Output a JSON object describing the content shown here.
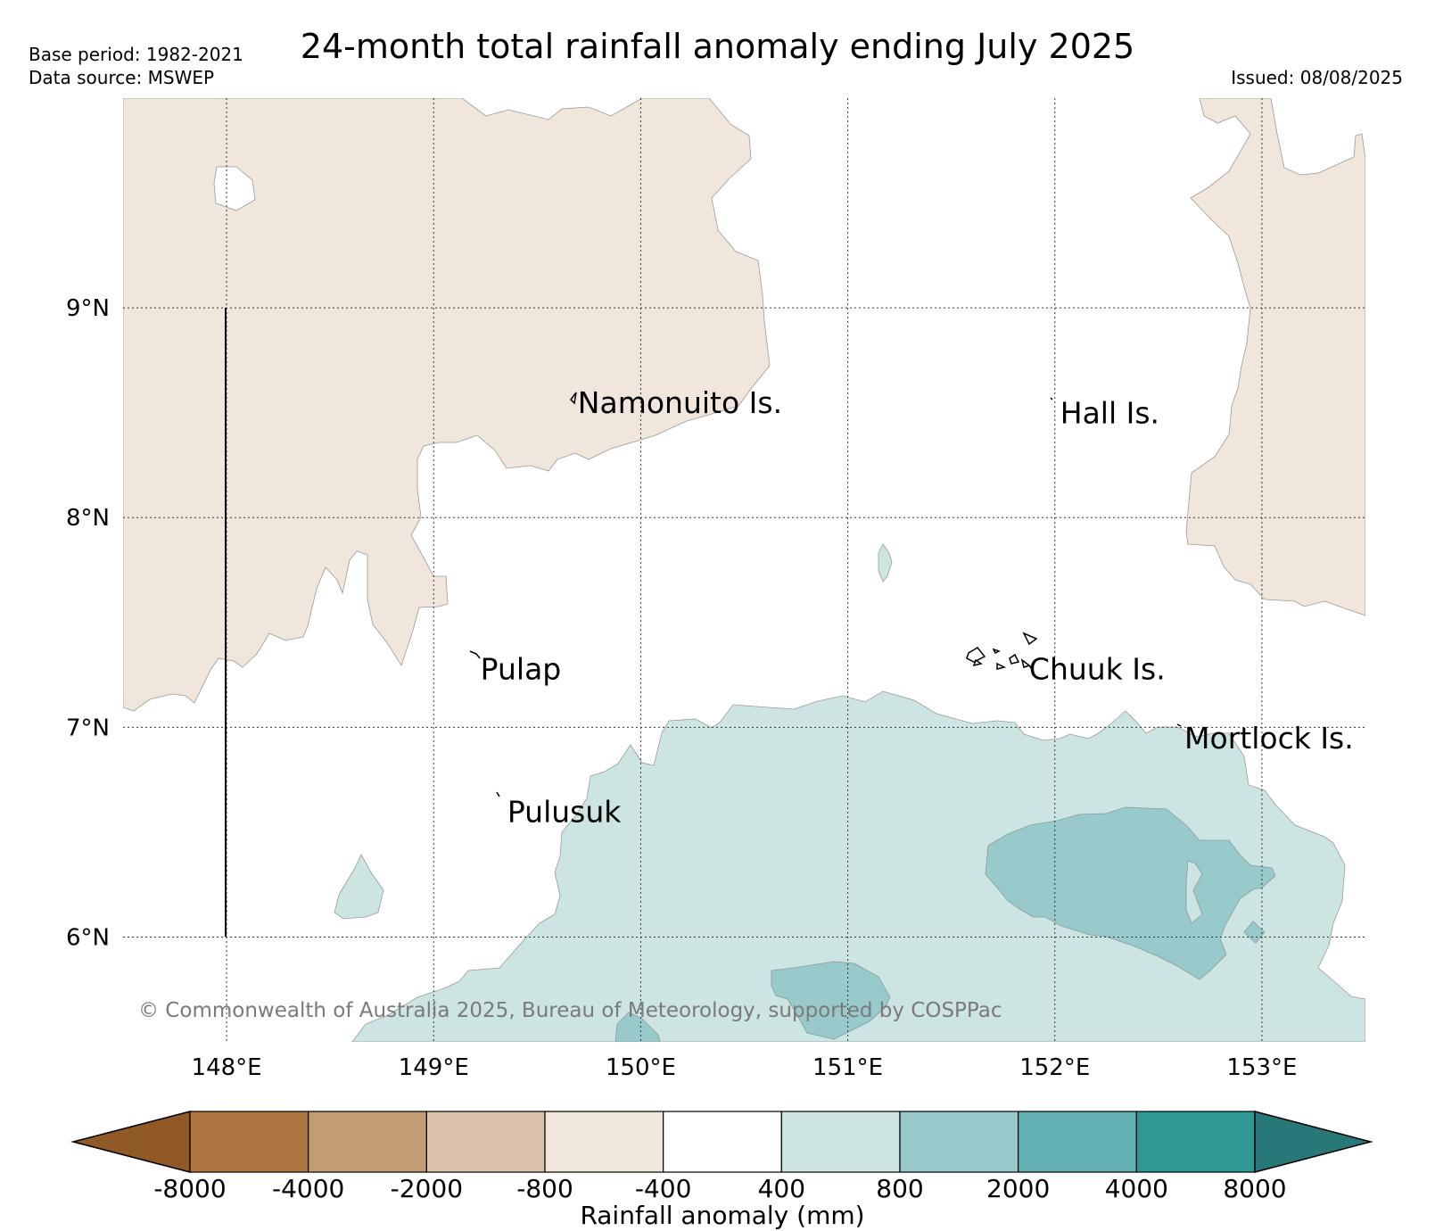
{
  "header": {
    "base_period": "Base period: 1982-2021",
    "data_source": "Data source: MSWEP",
    "title": "24-month total rainfall anomaly ending July 2025",
    "issued": "Issued: 08/08/2025"
  },
  "map": {
    "lon_range": [
      147.5,
      153.5
    ],
    "lat_range": [
      5.5,
      10.0
    ],
    "lon_ticks": [
      "148°E",
      "149°E",
      "150°E",
      "151°E",
      "152°E",
      "153°E"
    ],
    "lat_ticks": [
      "9°N",
      "8°N",
      "7°N",
      "6°N"
    ],
    "gridlines": "dotted",
    "places": [
      {
        "name": "Namonuito Is.",
        "lon": 149.67,
        "lat": 8.55
      },
      {
        "name": "Hall Is.",
        "lon": 152.0,
        "lat": 8.5
      },
      {
        "name": "Pulap",
        "lon": 149.2,
        "lat": 7.28
      },
      {
        "name": "Chuuk Is.",
        "lon": 151.85,
        "lat": 7.28
      },
      {
        "name": "Mortlock Is.",
        "lon": 152.6,
        "lat": 6.95
      },
      {
        "name": "Pulusuk",
        "lon": 149.33,
        "lat": 6.6
      }
    ],
    "credit": "© Commonwealth of Australia 2025, Bureau of Meteorology, supported by COSPPac"
  },
  "colorbar": {
    "label": "Rainfall anomaly (mm)",
    "ticks": [
      "-8000",
      "-4000",
      "-2000",
      "-800",
      "-400",
      "400",
      "800",
      "2000",
      "4000",
      "8000"
    ],
    "colors": [
      "#8f5a26",
      "#ad7640",
      "#c49c74",
      "#dbc3ab",
      "#f0e6dc",
      "#ffffff",
      "#cce5e3",
      "#99cacb",
      "#63b1b1",
      "#2f9894",
      "#287878"
    ]
  }
}
